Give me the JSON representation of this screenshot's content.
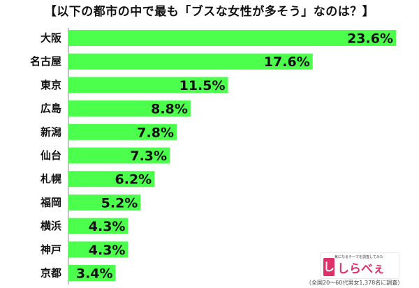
{
  "chart_data": {
    "type": "bar",
    "orientation": "horizontal",
    "title": "【以下の都市の中で最も「ブスな女性が多そう」なのは？】",
    "categories": [
      "大阪",
      "名古屋",
      "東京",
      "広島",
      "新潟",
      "仙台",
      "札幌",
      "福岡",
      "横浜",
      "神戸",
      "京都"
    ],
    "values": [
      23.6,
      17.6,
      11.5,
      8.8,
      7.8,
      7.3,
      6.2,
      5.2,
      4.3,
      4.3,
      3.4
    ],
    "value_labels": [
      "23.6%",
      "17.6%",
      "11.5%",
      "8.8%",
      "7.8%",
      "7.3%",
      "6.2%",
      "5.2%",
      "4.3%",
      "4.3%",
      "3.4%"
    ],
    "xlim": [
      0,
      23.6
    ],
    "grid": false,
    "bar_color": "#4dff4d"
  },
  "logo": {
    "tagline": "気になるテーマを調査してみた",
    "badge": "し",
    "name": "しらべぇ"
  },
  "note": "（全国20〜60代男女1,378名に調査）"
}
